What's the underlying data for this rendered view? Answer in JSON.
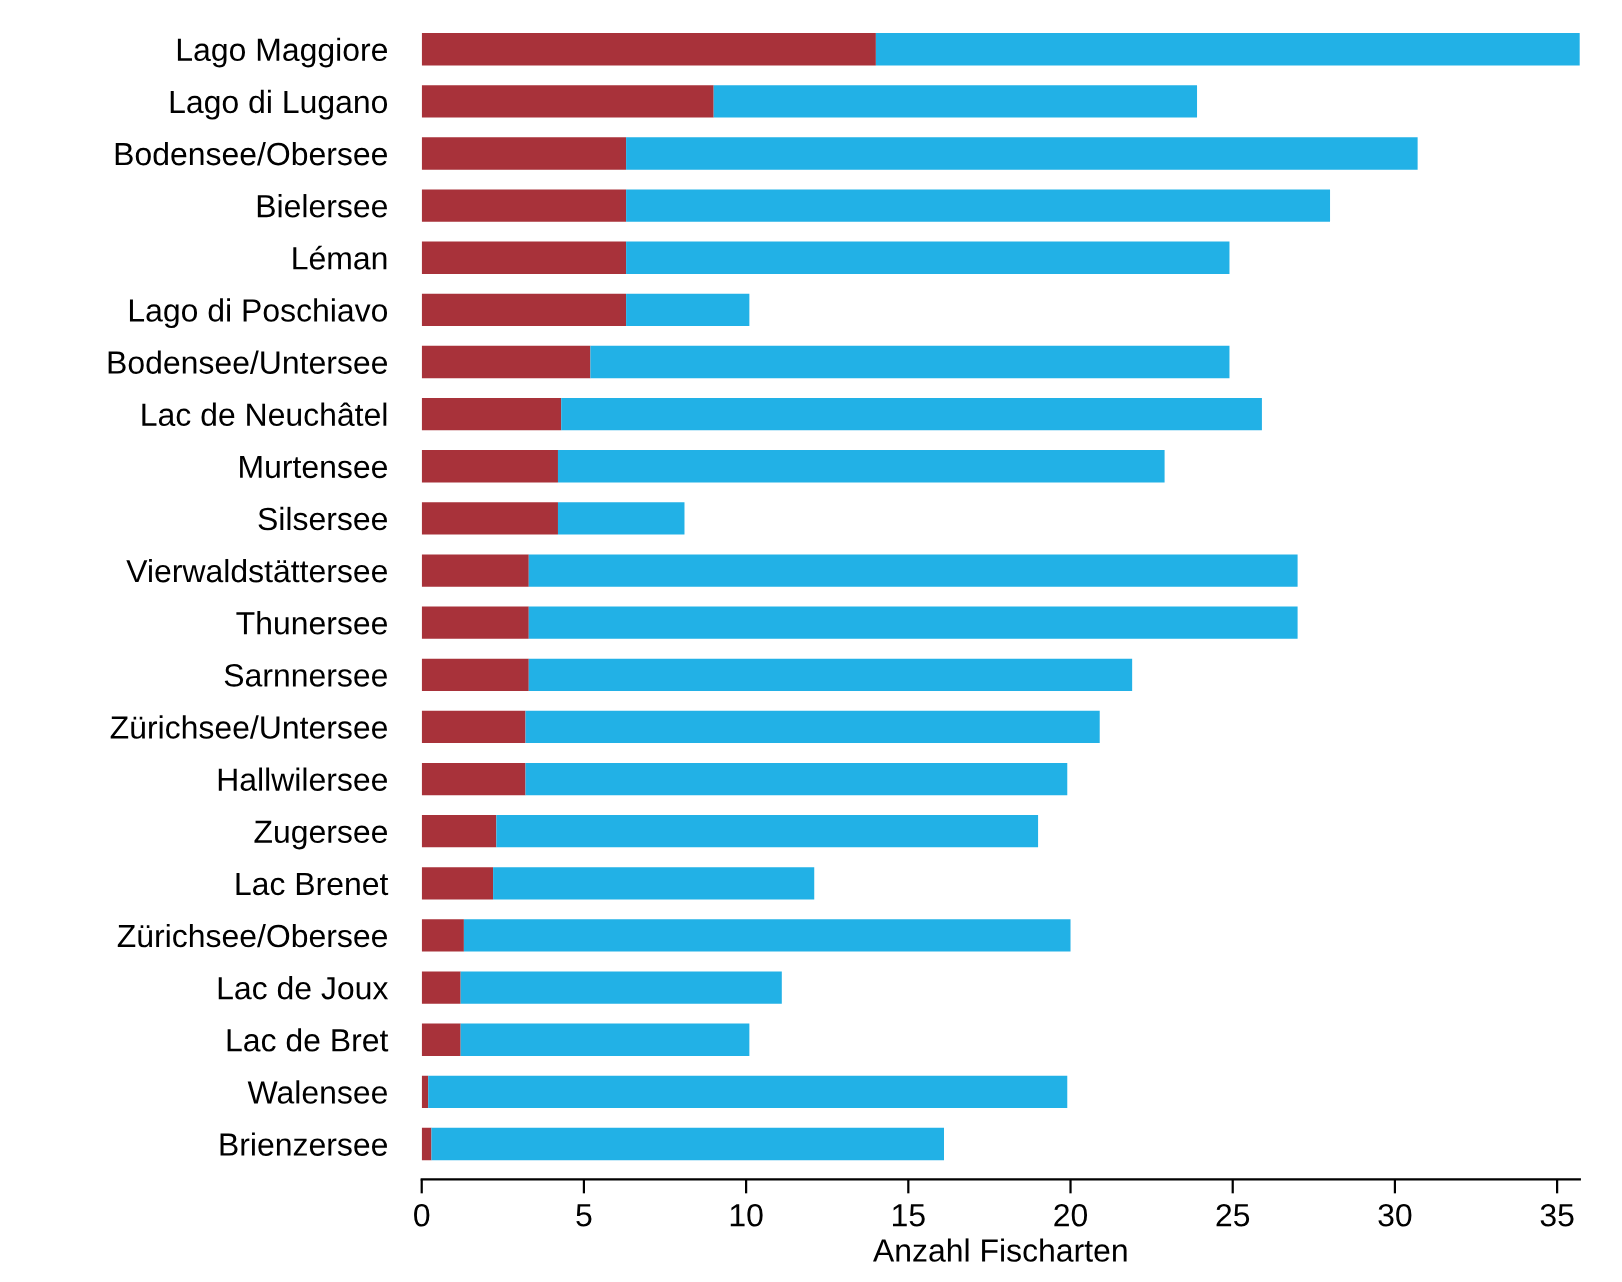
{
  "chart_data": {
    "type": "bar",
    "orientation": "horizontal",
    "stacked": true,
    "xlabel": "Anzahl Fischarten",
    "categories": [
      "Lago Maggiore",
      "Lago di Lugano",
      "Bodensee/Obersee",
      "Bielersee",
      "Léman",
      "Lago di Poschiavo",
      "Bodensee/Untersee",
      "Lac de Neuchâtel",
      "Murtensee",
      "Silsersee",
      "Vierwaldstättersee",
      "Thunersee",
      "Sarnnersee",
      "Zürichsee/Untersee",
      "Hallwilersee",
      "Zugersee",
      "Lac Brenet",
      "Zürichsee/Obersee",
      "Lac de Joux",
      "Lac de Bret",
      "Walensee",
      "Brienzersee"
    ],
    "series": [
      {
        "color": "#a8323a",
        "values": [
          14.0,
          9.0,
          6.3,
          6.3,
          6.3,
          6.3,
          5.2,
          4.3,
          4.2,
          4.2,
          3.3,
          3.3,
          3.3,
          3.2,
          3.2,
          2.3,
          2.2,
          1.3,
          1.2,
          1.2,
          0.2,
          0.3
        ]
      },
      {
        "color": "#22b1e6",
        "values": [
          21.7,
          14.9,
          24.4,
          21.7,
          18.6,
          3.8,
          19.7,
          21.6,
          18.7,
          3.9,
          23.7,
          23.7,
          18.6,
          17.7,
          16.7,
          16.7,
          9.9,
          18.7,
          9.9,
          8.9,
          19.7,
          15.8
        ]
      }
    ],
    "xlim": [
      0,
      35.7
    ],
    "xticks": [
      0,
      5,
      10,
      15,
      20,
      25,
      30,
      35
    ],
    "grid": false
  }
}
